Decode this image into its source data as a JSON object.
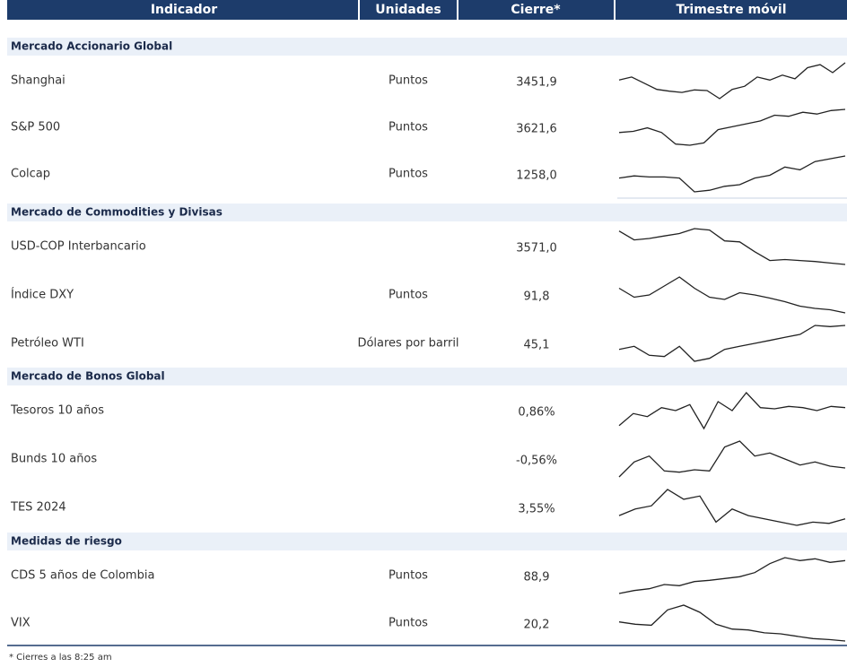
{
  "header": {
    "columns": [
      "Indicador",
      "Unidades",
      "Cierre*",
      "Trimestre móvil"
    ]
  },
  "sections": [
    {
      "title": "Mercado Accionario Global",
      "rows": [
        {
          "indicator": "Shanghai",
          "units": "Puntos",
          "close": "3451,9",
          "trend": [
            50,
            55,
            45,
            35,
            32,
            30,
            34,
            33,
            20,
            35,
            40,
            55,
            50,
            58,
            52,
            70,
            75,
            62,
            78
          ]
        },
        {
          "indicator": "S&P 500",
          "units": "Puntos",
          "close": "3621,6",
          "trend": [
            40,
            42,
            48,
            40,
            20,
            18,
            22,
            45,
            50,
            55,
            60,
            70,
            68,
            75,
            72,
            78,
            80
          ]
        },
        {
          "indicator": "Colcap",
          "units": "Puntos",
          "close": "1258,0",
          "trend": [
            40,
            44,
            42,
            42,
            40,
            15,
            18,
            25,
            28,
            40,
            45,
            60,
            55,
            70,
            75,
            80
          ]
        }
      ]
    },
    {
      "title": "Mercado de Commodities y Divisas",
      "rows": [
        {
          "indicator": "USD-COP Interbancario",
          "close": "3571,0",
          "trend": [
            80,
            62,
            65,
            70,
            75,
            85,
            82,
            60,
            58,
            38,
            20,
            22,
            20,
            18,
            15,
            12
          ]
        },
        {
          "indicator": "Índice DXY",
          "units": "Puntos",
          "close": "91,8",
          "trend": [
            60,
            40,
            45,
            65,
            85,
            60,
            40,
            35,
            50,
            45,
            38,
            30,
            20,
            15,
            12,
            5
          ]
        },
        {
          "indicator": "Petróleo WTI",
          "units": "Dólares por barril",
          "close": "45,1",
          "trend": [
            40,
            45,
            30,
            28,
            45,
            20,
            25,
            40,
            45,
            50,
            55,
            60,
            65,
            80,
            78,
            80
          ]
        }
      ]
    },
    {
      "title": "Mercado de Bonos Global",
      "rows": [
        {
          "indicator": "Tesoros 10 años",
          "close": "0,86%",
          "trend": [
            30,
            50,
            45,
            60,
            55,
            65,
            25,
            70,
            55,
            85,
            60,
            58,
            62,
            60,
            55,
            62,
            60
          ]
        },
        {
          "indicator": "Bunds 10 años",
          "close": "-0,56%",
          "trend": [
            20,
            45,
            55,
            30,
            28,
            32,
            30,
            70,
            80,
            55,
            60,
            50,
            40,
            45,
            38,
            35
          ]
        },
        {
          "indicator": "TES 2024",
          "close": "3,55%",
          "trend": [
            30,
            40,
            45,
            70,
            55,
            60,
            20,
            40,
            30,
            25,
            20,
            15,
            20,
            18,
            25
          ]
        }
      ]
    },
    {
      "title": "Medidas de riesgo",
      "rows": [
        {
          "indicator": "CDS 5 años de Colombia",
          "units": "Puntos",
          "close": "88,9",
          "trend": [
            20,
            25,
            28,
            35,
            33,
            40,
            42,
            45,
            48,
            55,
            70,
            80,
            75,
            78,
            72,
            75
          ]
        },
        {
          "indicator": "VIX",
          "units": "Puntos",
          "close": "20,2",
          "trend": [
            45,
            40,
            38,
            70,
            80,
            65,
            40,
            30,
            28,
            22,
            20,
            15,
            10,
            8,
            5
          ]
        }
      ]
    }
  ],
  "footnote": "* Cierres a las 8:25 am"
}
